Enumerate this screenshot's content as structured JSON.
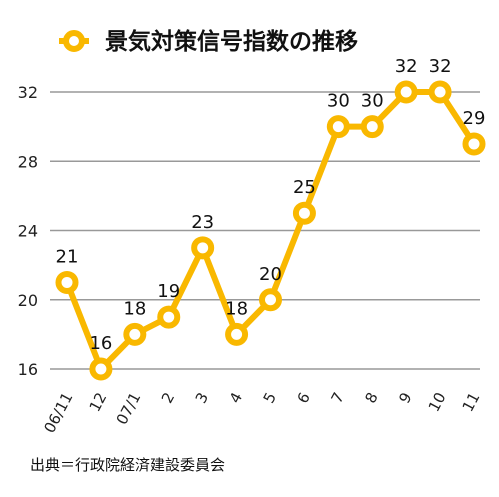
{
  "chart_data": {
    "type": "line",
    "title": "景気対策信号指数の推移",
    "series": [
      {
        "name": "景気対策信号指数の推移",
        "color": "#F9B800",
        "values": [
          21,
          16,
          18,
          19,
          23,
          18,
          20,
          25,
          30,
          30,
          32,
          32,
          29
        ]
      }
    ],
    "categories": [
      "06/11",
      "12",
      "07/1",
      "2",
      "3",
      "4",
      "5",
      "6",
      "7",
      "8",
      "9",
      "10",
      "11"
    ],
    "ylim": [
      16,
      32
    ],
    "yticks": [
      16,
      20,
      24,
      28,
      32
    ],
    "grid": true,
    "legend": "top",
    "xlabel": "",
    "ylabel": "",
    "source": "出典＝行政院経済建設委員会",
    "colors": {
      "line": "#F9B800",
      "grid": "#999999",
      "marker_fill": "#ffffff"
    }
  }
}
